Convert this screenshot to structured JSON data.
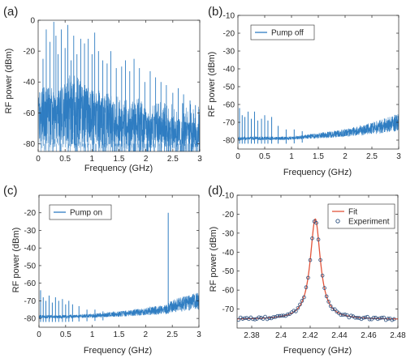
{
  "panels": [
    {
      "id": "a",
      "label": "(a)",
      "xlabel": "Frequency (GHz)",
      "ylabel": "RF power (dBm)",
      "xlim": [
        0,
        3
      ],
      "ylim": [
        -85,
        0
      ],
      "xticks": [
        {
          "v": 0,
          "t": "0"
        },
        {
          "v": 0.5,
          "t": "0.5"
        },
        {
          "v": 1,
          "t": "1"
        },
        {
          "v": 1.5,
          "t": "1.5"
        },
        {
          "v": 2,
          "t": "2"
        },
        {
          "v": 2.5,
          "t": "2.5"
        },
        {
          "v": 3,
          "t": "3"
        }
      ],
      "yticks": [
        {
          "v": 0,
          "t": "0"
        },
        {
          "v": -20,
          "t": "-20"
        },
        {
          "v": -40,
          "t": "-40"
        },
        {
          "v": -60,
          "t": "-60"
        },
        {
          "v": -80,
          "t": "-80"
        }
      ],
      "legend": null
    },
    {
      "id": "b",
      "label": "(b)",
      "xlabel": "Frequency (GHz)",
      "ylabel": "RF power (dBm)",
      "xlim": [
        0,
        3
      ],
      "ylim": [
        -85,
        -10
      ],
      "xticks": [
        {
          "v": 0,
          "t": "0"
        },
        {
          "v": 0.5,
          "t": "0.5"
        },
        {
          "v": 1,
          "t": "1"
        },
        {
          "v": 1.5,
          "t": "1.5"
        },
        {
          "v": 2,
          "t": "2"
        },
        {
          "v": 2.5,
          "t": "2.5"
        },
        {
          "v": 3,
          "t": "3"
        }
      ],
      "yticks": [
        {
          "v": -10,
          "t": "-10"
        },
        {
          "v": -20,
          "t": "-20"
        },
        {
          "v": -30,
          "t": "-30"
        },
        {
          "v": -40,
          "t": "-40"
        },
        {
          "v": -50,
          "t": "-50"
        },
        {
          "v": -60,
          "t": "-60"
        },
        {
          "v": -70,
          "t": "-70"
        },
        {
          "v": -80,
          "t": "-80"
        }
      ],
      "legend": [
        {
          "name": "Pump off",
          "kind": "line",
          "color": "#2f7dc2"
        }
      ]
    },
    {
      "id": "c",
      "label": "(c)",
      "xlabel": "Frequency (GHz)",
      "ylabel": "RF power (dBm)",
      "xlim": [
        0,
        3
      ],
      "ylim": [
        -85,
        -10
      ],
      "xticks": [
        {
          "v": 0,
          "t": "0"
        },
        {
          "v": 0.5,
          "t": "0.5"
        },
        {
          "v": 1,
          "t": "1"
        },
        {
          "v": 1.5,
          "t": "1.5"
        },
        {
          "v": 2,
          "t": "2"
        },
        {
          "v": 2.5,
          "t": "2.5"
        },
        {
          "v": 3,
          "t": "3"
        }
      ],
      "yticks": [
        {
          "v": -20,
          "t": "-20"
        },
        {
          "v": -30,
          "t": "-30"
        },
        {
          "v": -40,
          "t": "-40"
        },
        {
          "v": -50,
          "t": "-50"
        },
        {
          "v": -60,
          "t": "-60"
        },
        {
          "v": -70,
          "t": "-70"
        },
        {
          "v": -80,
          "t": "-80"
        }
      ],
      "legend": [
        {
          "name": "Pump on",
          "kind": "line",
          "color": "#2f7dc2"
        }
      ]
    },
    {
      "id": "d",
      "label": "(d)",
      "xlabel": "Frequency (GHz)",
      "ylabel": "RF power (dBm)",
      "xlim": [
        2.37,
        2.48
      ],
      "ylim": [
        -80,
        -10
      ],
      "xticks": [
        {
          "v": 2.38,
          "t": "2.38"
        },
        {
          "v": 2.4,
          "t": "2.4"
        },
        {
          "v": 2.42,
          "t": "2.42"
        },
        {
          "v": 2.44,
          "t": "2.44"
        },
        {
          "v": 2.46,
          "t": "2.46"
        },
        {
          "v": 2.48,
          "t": "2.48"
        }
      ],
      "yticks": [
        {
          "v": -10,
          "t": "-10"
        },
        {
          "v": -20,
          "t": "-20"
        },
        {
          "v": -30,
          "t": "-30"
        },
        {
          "v": -40,
          "t": "-40"
        },
        {
          "v": -50,
          "t": "-50"
        },
        {
          "v": -60,
          "t": "-60"
        },
        {
          "v": -70,
          "t": "-70"
        }
      ],
      "legend": [
        {
          "name": "Fit",
          "kind": "line",
          "color": "#e2543a"
        },
        {
          "name": "Experiment",
          "kind": "marker",
          "color": "#2b4f7e"
        }
      ]
    }
  ],
  "chart_data": [
    {
      "type": "line",
      "panel": "a",
      "title": "",
      "series": [
        {
          "name": "",
          "color": "#2f7dc2",
          "base": [
            [
              0,
              -63
            ],
            [
              0.2,
              -63
            ],
            [
              0.4,
              -64
            ],
            [
              0.6,
              -58
            ],
            [
              0.75,
              -60
            ],
            [
              1.0,
              -65
            ],
            [
              1.3,
              -66
            ],
            [
              1.5,
              -70
            ],
            [
              2.0,
              -71
            ],
            [
              2.5,
              -73
            ],
            [
              3.0,
              -75
            ]
          ],
          "noise_low": -83,
          "peaks": [
            [
              0.09,
              -25
            ],
            [
              0.15,
              -6
            ],
            [
              0.22,
              -14
            ],
            [
              0.29,
              -1
            ],
            [
              0.33,
              -10
            ],
            [
              0.37,
              -22
            ],
            [
              0.43,
              -6
            ],
            [
              0.5,
              -18
            ],
            [
              0.55,
              -3
            ],
            [
              0.61,
              -26
            ],
            [
              0.66,
              -10
            ],
            [
              0.72,
              -22
            ],
            [
              0.79,
              -12
            ],
            [
              0.86,
              -15
            ],
            [
              0.93,
              -12
            ],
            [
              1.0,
              -22
            ],
            [
              1.05,
              -8
            ],
            [
              1.12,
              -20
            ],
            [
              1.2,
              -26
            ],
            [
              1.28,
              -28
            ],
            [
              1.35,
              -20
            ],
            [
              1.45,
              -31
            ],
            [
              1.55,
              -30
            ],
            [
              1.62,
              -26
            ],
            [
              1.7,
              -33
            ],
            [
              1.78,
              -25
            ],
            [
              1.88,
              -31
            ],
            [
              1.98,
              -40
            ],
            [
              2.08,
              -33
            ],
            [
              2.18,
              -37
            ],
            [
              2.28,
              -40
            ],
            [
              2.38,
              -42
            ],
            [
              2.5,
              -47
            ],
            [
              2.6,
              -44
            ],
            [
              2.7,
              -48
            ],
            [
              2.82,
              -52
            ],
            [
              2.92,
              -55
            ]
          ]
        }
      ]
    },
    {
      "type": "line",
      "panel": "b",
      "title": "",
      "series": [
        {
          "name": "Pump off",
          "color": "#2f7dc2",
          "base": [
            [
              0,
              -79
            ],
            [
              0.5,
              -79
            ],
            [
              1.0,
              -79
            ],
            [
              1.5,
              -77.5
            ],
            [
              2.0,
              -76
            ],
            [
              2.5,
              -73.5
            ],
            [
              3.0,
              -70
            ]
          ],
          "noise_low": -81,
          "peaks": [
            [
              0.03,
              -62
            ],
            [
              0.08,
              -66
            ],
            [
              0.13,
              -67
            ],
            [
              0.19,
              -64
            ],
            [
              0.25,
              -68
            ],
            [
              0.31,
              -64
            ],
            [
              0.37,
              -69
            ],
            [
              0.44,
              -68
            ],
            [
              0.5,
              -66
            ],
            [
              0.56,
              -69
            ],
            [
              0.63,
              -67
            ],
            [
              0.75,
              -72
            ],
            [
              0.9,
              -74
            ],
            [
              1.05,
              -74
            ],
            [
              1.2,
              -75
            ]
          ]
        }
      ]
    },
    {
      "type": "line",
      "panel": "c",
      "title": "",
      "series": [
        {
          "name": "Pump on",
          "color": "#2f7dc2",
          "base": [
            [
              0,
              -79
            ],
            [
              0.5,
              -79
            ],
            [
              1.0,
              -78.5
            ],
            [
              1.5,
              -77.5
            ],
            [
              2.0,
              -76
            ],
            [
              2.38,
              -75
            ],
            [
              2.5,
              -73
            ],
            [
              3.0,
              -70
            ]
          ],
          "noise_low": -81,
          "peaks": [
            [
              0.03,
              -64
            ],
            [
              0.08,
              -68
            ],
            [
              0.13,
              -70
            ],
            [
              0.19,
              -67
            ],
            [
              0.25,
              -71
            ],
            [
              0.31,
              -68
            ],
            [
              0.37,
              -70
            ],
            [
              0.44,
              -69
            ],
            [
              0.5,
              -72
            ],
            [
              0.56,
              -70
            ],
            [
              0.63,
              -72
            ],
            [
              0.75,
              -73
            ],
            [
              0.9,
              -75
            ],
            [
              1.05,
              -75
            ],
            [
              1.2,
              -76
            ],
            [
              2.424,
              -20
            ]
          ]
        }
      ]
    },
    {
      "type": "scatter",
      "panel": "d",
      "title": "",
      "series": [
        {
          "name": "Fit",
          "kind": "line",
          "color": "#e2543a",
          "lorentzian": {
            "center": 2.4235,
            "gamma": 0.0042,
            "floor": -75.5,
            "peak": -22.5,
            "slope": 2.0
          }
        },
        {
          "name": "Experiment",
          "kind": "marker",
          "color": "#2b4f7e",
          "lorentzian": {
            "center": 2.4235,
            "gamma": 0.0042,
            "floor": -75.5,
            "peak": -22.5,
            "slope": 2.0
          },
          "x_start": 2.371,
          "x_end": 2.478,
          "x_step": 0.0014
        }
      ]
    }
  ]
}
